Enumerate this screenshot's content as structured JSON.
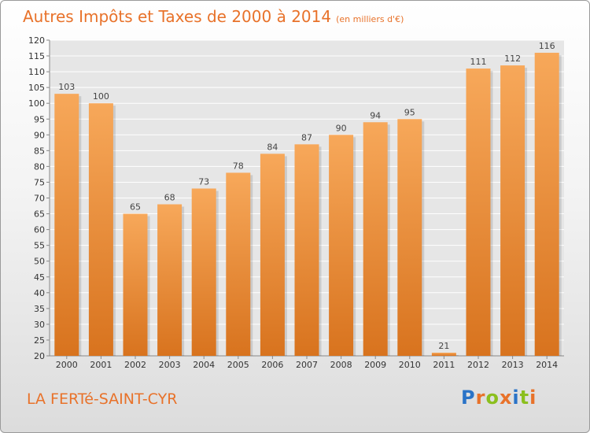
{
  "header": {
    "title": "Autres Impôts et Taxes de 2000 à 2014",
    "unit": "(en milliers d'€)"
  },
  "footer": {
    "commune": "LA FERTé-SAINT-CYR",
    "logo": "Proxiti",
    "logo_colors": [
      "#2a73c7",
      "#e8722a",
      "#8bbf1e",
      "#e8722a",
      "#2a73c7",
      "#8bbf1e",
      "#e8722a"
    ]
  },
  "chart_data": {
    "type": "bar",
    "categories": [
      "2000",
      "2001",
      "2002",
      "2003",
      "2004",
      "2005",
      "2006",
      "2007",
      "2008",
      "2009",
      "2010",
      "2011",
      "2012",
      "2013",
      "2014"
    ],
    "values": [
      103,
      100,
      65,
      68,
      73,
      78,
      84,
      87,
      90,
      94,
      95,
      21,
      111,
      112,
      116
    ],
    "title": "Autres Impôts et Taxes de 2000 à 2014",
    "xlabel": "",
    "ylabel": "",
    "ylim": [
      20,
      120
    ],
    "yticks": [
      20,
      25,
      30,
      35,
      40,
      45,
      50,
      55,
      60,
      65,
      70,
      75,
      80,
      85,
      90,
      95,
      100,
      105,
      110,
      115,
      120
    ],
    "grid": true,
    "bar_color_top": "#f7a85a",
    "bar_color_bottom": "#d8731e",
    "plot_bg": "#e6e6e6",
    "grid_color": "#ffffff"
  }
}
